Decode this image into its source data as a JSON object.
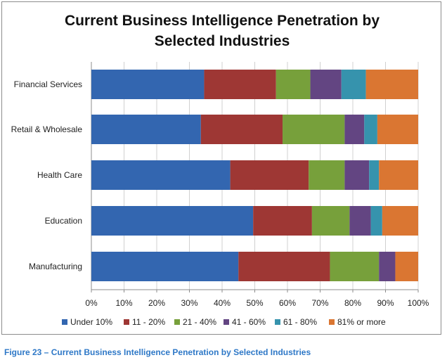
{
  "chart_data": {
    "type": "bar",
    "orientation": "horizontal",
    "stacked": "percent",
    "title_lines": [
      "Current Business Intelligence Penetration by",
      "Selected Industries"
    ],
    "categories": [
      "Financial Services",
      "Retail & Wholesale",
      "Health Care",
      "Education",
      "Manufacturing"
    ],
    "series": [
      {
        "name": "Under 10%",
        "color": "#3366b0",
        "values": [
          34.5,
          33.5,
          42.5,
          49.5,
          45
        ]
      },
      {
        "name": "11 - 20%",
        "color": "#9e3734",
        "values": [
          22,
          25,
          24,
          18,
          28
        ]
      },
      {
        "name": "21 - 40%",
        "color": "#77a03b",
        "values": [
          10.5,
          19,
          11,
          11.5,
          15
        ]
      },
      {
        "name": "41 - 60%",
        "color": "#634582",
        "values": [
          9.5,
          6,
          7.5,
          6.5,
          5
        ]
      },
      {
        "name": "61 - 80%",
        "color": "#3693ad",
        "values": [
          7.5,
          4,
          3,
          3.5,
          0
        ]
      },
      {
        "name": "81% or more",
        "color": "#da7632",
        "values": [
          16,
          12.5,
          12,
          11,
          7
        ]
      }
    ],
    "x_ticks": [
      "0%",
      "10%",
      "20%",
      "30%",
      "40%",
      "50%",
      "60%",
      "70%",
      "80%",
      "90%",
      "100%"
    ],
    "xlim": [
      0,
      100
    ],
    "grid": true,
    "legend_position": "bottom"
  },
  "caption": "Figure 23 – Current Business Intelligence Penetration by Selected Industries"
}
